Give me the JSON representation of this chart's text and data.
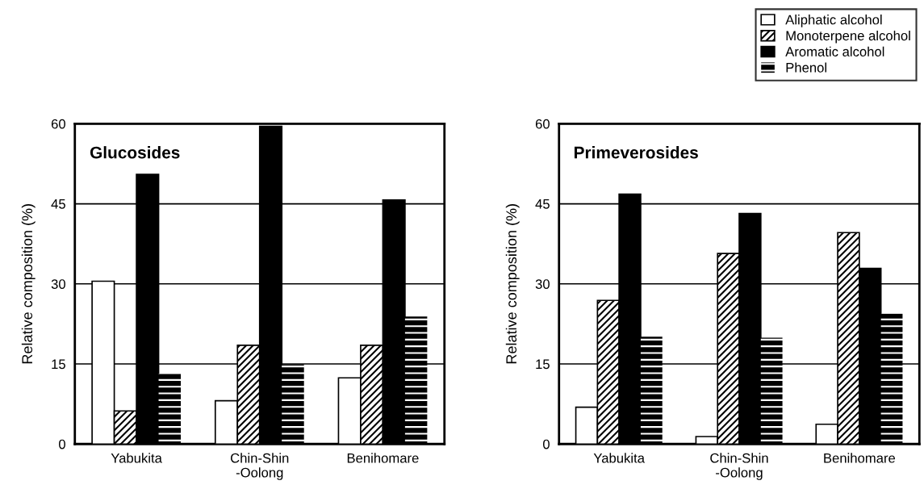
{
  "chart_data": [
    {
      "type": "bar",
      "title": "Glucosides",
      "ylabel": "Relative composition (%)",
      "categories": [
        "Yabukita",
        "Chin-Shin\n-Oolong",
        "Benihomare"
      ],
      "ylim": [
        0,
        60
      ],
      "yticks": [
        0,
        15,
        30,
        45,
        60
      ],
      "grid": "y",
      "legend": false,
      "series": [
        {
          "color": "#ffffff",
          "values": [
            30.5,
            8.1,
            12.4
          ]
        },
        {
          "color": "#000000",
          "values": [
            6.2,
            18.5,
            18.5
          ]
        },
        {
          "color": "#000000",
          "values": [
            50.5,
            59.5,
            45.7
          ]
        },
        {
          "color": "#000000",
          "values": [
            13.2,
            14.9,
            23.9
          ]
        }
      ]
    },
    {
      "type": "bar",
      "title": "Primeverosides",
      "ylabel": "Relative composition (%)",
      "categories": [
        "Yabukita",
        "Chin-Shin\n-Oolong",
        "Benihomare"
      ],
      "ylim": [
        0,
        60
      ],
      "yticks": [
        0,
        15,
        30,
        45,
        60
      ],
      "grid": "y",
      "legend": "top right",
      "series": [
        {
          "name": "Aliphatic alcohol",
          "color": "#ffffff",
          "values": [
            6.9,
            1.4,
            3.7
          ]
        },
        {
          "name": "Monoterpene alcohol",
          "color": "#000000",
          "values": [
            26.9,
            35.7,
            39.6
          ]
        },
        {
          "name": "Aromatic alcohol",
          "color": "#000000",
          "values": [
            46.8,
            43.2,
            32.9
          ]
        },
        {
          "name": "Phenol",
          "color": "#000000",
          "values": [
            20.1,
            19.9,
            24.4
          ]
        }
      ]
    }
  ]
}
